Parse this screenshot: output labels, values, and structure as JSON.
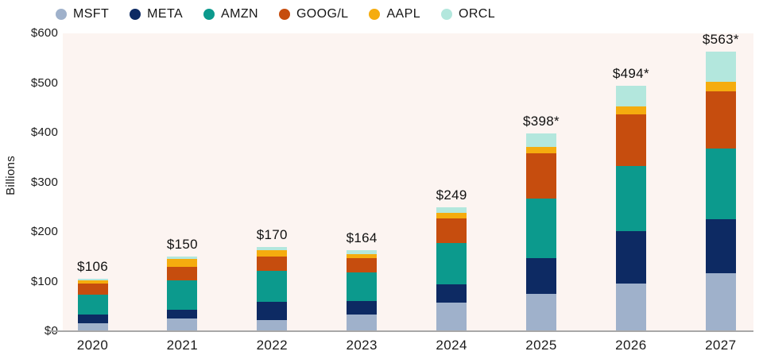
{
  "ylabel": "Billions",
  "chart_data": {
    "type": "bar",
    "subtype": "stacked-vertical",
    "title": "",
    "ylabel": "Billions",
    "ylim": [
      0,
      600
    ],
    "ytick_step": 100,
    "ytick_labels": [
      "$0",
      "$100",
      "$200",
      "$300",
      "$400",
      "$500",
      "$600"
    ],
    "grid": false,
    "legend_position": "top",
    "plot_background": "#fcf4f1",
    "axis_line_color": "#a8a8a8",
    "categories": [
      "2020",
      "2021",
      "2022",
      "2023",
      "2024",
      "2025",
      "2026",
      "2027"
    ],
    "totals": [
      106,
      150,
      170,
      164,
      249,
      398,
      494,
      563
    ],
    "total_labels": [
      "$106",
      "$150",
      "$170",
      "$164",
      "$249",
      "$398*",
      "$494*",
      "$563*"
    ],
    "series": [
      {
        "name": "MSFT",
        "color": "#9fb1cb",
        "values": [
          16,
          25,
          23,
          33,
          58,
          75,
          96,
          117
        ]
      },
      {
        "name": "META",
        "color": "#0d2a63",
        "values": [
          17,
          19,
          37,
          28,
          36,
          72,
          106,
          109
        ]
      },
      {
        "name": "AMZN",
        "color": "#0c9a8d",
        "values": [
          40,
          58,
          61,
          57,
          84,
          120,
          131,
          142
        ]
      },
      {
        "name": "GOOG/L",
        "color": "#c64d0e",
        "values": [
          23,
          27,
          29,
          30,
          49,
          91,
          104,
          116
        ]
      },
      {
        "name": "AAPL",
        "color": "#f5ac0e",
        "values": [
          6,
          17,
          14,
          8,
          11,
          13,
          16,
          19
        ]
      },
      {
        "name": "ORCL",
        "color": "#b3e7dd",
        "values": [
          4,
          4,
          6,
          8,
          11,
          27,
          41,
          60
        ]
      }
    ]
  }
}
